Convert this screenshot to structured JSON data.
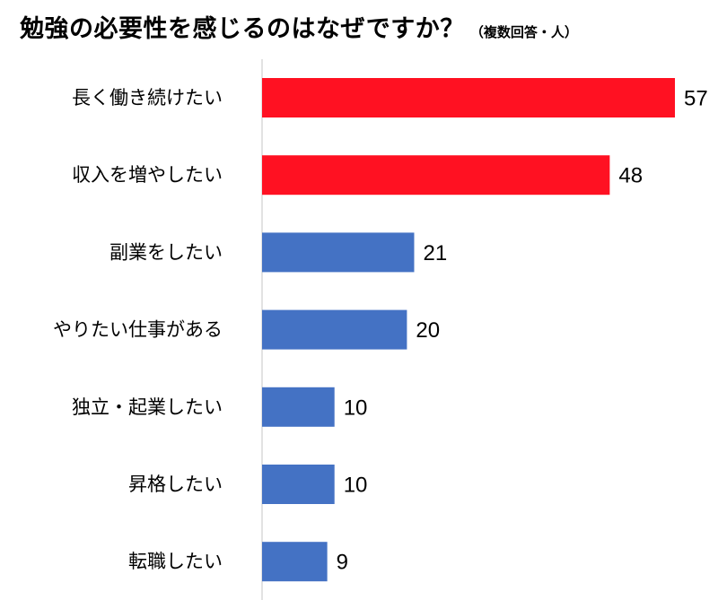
{
  "chart_data": {
    "type": "bar",
    "orientation": "horizontal",
    "title": "勉強の必要性を感じるのはなぜですか？",
    "subtitle": "（複数回答・人）",
    "categories": [
      "長く働き続けたい",
      "収入を増やしたい",
      "副業をしたい",
      "やりたい仕事がある",
      "独立・起業したい",
      "昇格したい",
      "転職したい"
    ],
    "values": [
      57,
      48,
      21,
      20,
      10,
      10,
      9
    ],
    "bar_colors": [
      "#ff1122",
      "#ff1122",
      "#4472c4",
      "#4472c4",
      "#4472c4",
      "#4472c4",
      "#4472c4"
    ],
    "xlim": [
      0,
      57
    ],
    "grid": false,
    "legend": "none"
  }
}
